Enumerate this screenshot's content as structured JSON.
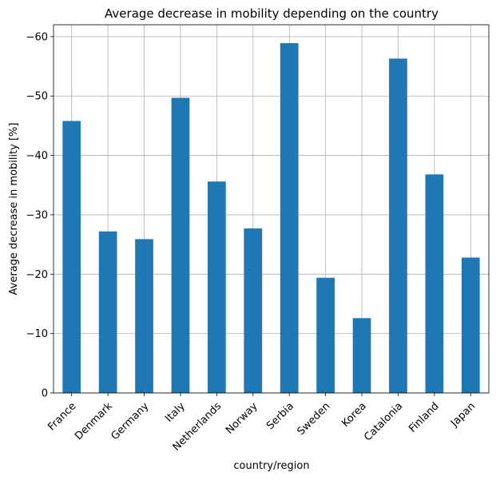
{
  "chart_data": {
    "type": "bar",
    "title": "Average decrease in mobility depending on the country",
    "xlabel": "country/region",
    "ylabel": "Average decrease in mobility [%]",
    "categories": [
      "France",
      "Denmark",
      "Germany",
      "Italy",
      "Netherlands",
      "Norway",
      "Serbia",
      "Sweden",
      "Korea",
      "Catalonia",
      "Finland",
      "Japan"
    ],
    "values": [
      -45.8,
      -27.2,
      -25.9,
      -49.7,
      -35.6,
      -27.7,
      -58.9,
      -19.4,
      -12.6,
      -56.3,
      -36.8,
      -22.8
    ],
    "ylim": [
      0,
      -62
    ],
    "yticks": [
      0,
      -10,
      -20,
      -30,
      -40,
      -50,
      -60
    ],
    "ytick_labels": [
      "0",
      "−10",
      "−20",
      "−30",
      "−40",
      "−50",
      "−60"
    ],
    "y_axis_inverted": true,
    "grid": true,
    "bar_color": "#1f77b4"
  }
}
